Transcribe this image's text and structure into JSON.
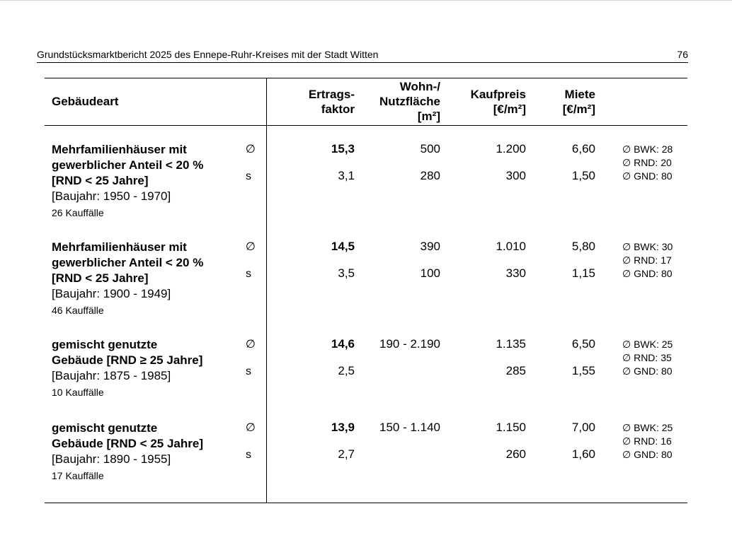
{
  "header": {
    "title": "Grundstücksmarktbericht 2025 des Ennepe-Ruhr-Kreises mit der Stadt Witten",
    "page": "76"
  },
  "table": {
    "col_gebaeudeart": "Gebäudeart",
    "col_ertrag_1": "Ertrags-",
    "col_ertrag_2": "faktor",
    "col_wohn_1": "Wohn-/",
    "col_wohn_2": "Nutzfläche",
    "col_wohn_3": "[m²]",
    "col_kauf_1": "Kaufpreis",
    "col_kauf_2": "[€/m²]",
    "col_miete_1": "Miete",
    "col_miete_2": "[€/m²]",
    "sym_mean": "∅",
    "sym_sd": "s",
    "rows": [
      {
        "name_1": "Mehrfamilienhäuser mit",
        "name_2": "gewerblicher Anteil < 20 %",
        "name_3": "[RND < 25 Jahre]",
        "baujahr": "[Baujahr: 1950 - 1970]",
        "kauffaelle": "26 Kauffälle",
        "mean": {
          "ertrag": "15,3",
          "flaeche": "500",
          "kaufpreis": "1.200",
          "miete": "6,60"
        },
        "sd": {
          "ertrag": "3,1",
          "flaeche": "280",
          "kaufpreis": "300",
          "miete": "1,50"
        },
        "bwk": "∅ BWK: 28",
        "rnd": "∅ RND: 20",
        "gnd": "∅ GND: 80"
      },
      {
        "name_1": "Mehrfamilienhäuser mit",
        "name_2": "gewerblicher Anteil < 20 %",
        "name_3": "[RND < 25 Jahre]",
        "baujahr": "[Baujahr: 1900 - 1949]",
        "kauffaelle": "46 Kauffälle",
        "mean": {
          "ertrag": "14,5",
          "flaeche": "390",
          "kaufpreis": "1.010",
          "miete": "5,80"
        },
        "sd": {
          "ertrag": "3,5",
          "flaeche": "100",
          "kaufpreis": "330",
          "miete": "1,15"
        },
        "bwk": "∅ BWK: 30",
        "rnd": "∅ RND: 17",
        "gnd": "∅ GND: 80"
      },
      {
        "name_1": "gemischt genutzte",
        "name_2": "Gebäude [RND ≥ 25 Jahre]",
        "name_3": "",
        "baujahr": "[Baujahr: 1875 - 1985]",
        "kauffaelle": "10 Kauffälle",
        "mean": {
          "ertrag": "14,6",
          "flaeche": "190 - 2.190",
          "kaufpreis": "1.135",
          "miete": "6,50"
        },
        "sd": {
          "ertrag": "2,5",
          "flaeche": "",
          "kaufpreis": "285",
          "miete": "1,55"
        },
        "bwk": "∅ BWK: 25",
        "rnd": "∅ RND: 35",
        "gnd": "∅ GND: 80"
      },
      {
        "name_1": "gemischt genutzte",
        "name_2": "Gebäude [RND < 25 Jahre]",
        "name_3": "",
        "baujahr": "[Baujahr: 1890 - 1955]",
        "kauffaelle": "17 Kauffälle",
        "mean": {
          "ertrag": "13,9",
          "flaeche": "150 - 1.140",
          "kaufpreis": "1.150",
          "miete": "7,00"
        },
        "sd": {
          "ertrag": "2,7",
          "flaeche": "",
          "kaufpreis": "260",
          "miete": "1,60"
        },
        "bwk": "∅ BWK: 25",
        "rnd": "∅ RND: 16",
        "gnd": "∅ GND: 80"
      }
    ]
  }
}
